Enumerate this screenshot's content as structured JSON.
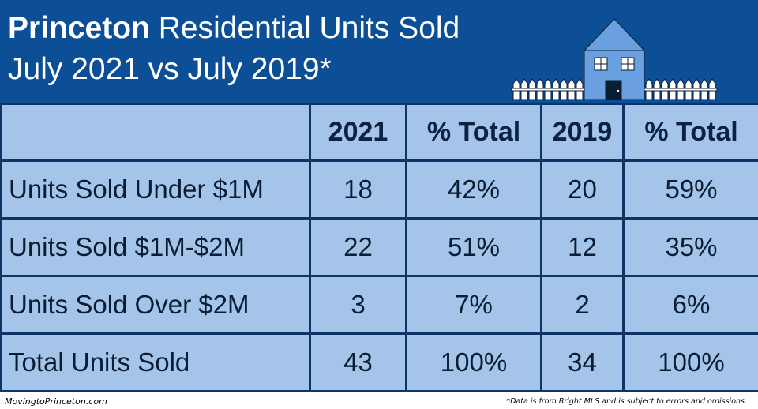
{
  "header": {
    "title_bold": "Princeton",
    "title_rest": " Residential Units Sold",
    "subtitle": "July 2021 vs July 2019*"
  },
  "colors": {
    "header_bg": "#0c4f96",
    "table_bg": "#a4c4ea",
    "table_border": "#0f3566",
    "house_fill": "#6a9fe0"
  },
  "table": {
    "columns": [
      "",
      "2021",
      "% Total",
      "2019",
      "% Total"
    ],
    "rows": [
      {
        "label": "Units Sold Under $1M",
        "v2021": "18",
        "p2021": "42%",
        "v2019": "20",
        "p2019": "59%"
      },
      {
        "label": "Units Sold $1M-$2M",
        "v2021": "22",
        "p2021": "51%",
        "v2019": "12",
        "p2019": "35%"
      },
      {
        "label": "Units Sold Over $2M",
        "v2021": "3",
        "p2021": "7%",
        "v2019": "2",
        "p2019": "6%"
      },
      {
        "label": "Total Units Sold",
        "v2021": "43",
        "p2021": "100%",
        "v2019": "34",
        "p2019": "100%"
      }
    ]
  },
  "footer": {
    "site": "MovingtoPrinceton.com",
    "note": "*Data is from Bright MLS and is subject to errors and omissions."
  }
}
